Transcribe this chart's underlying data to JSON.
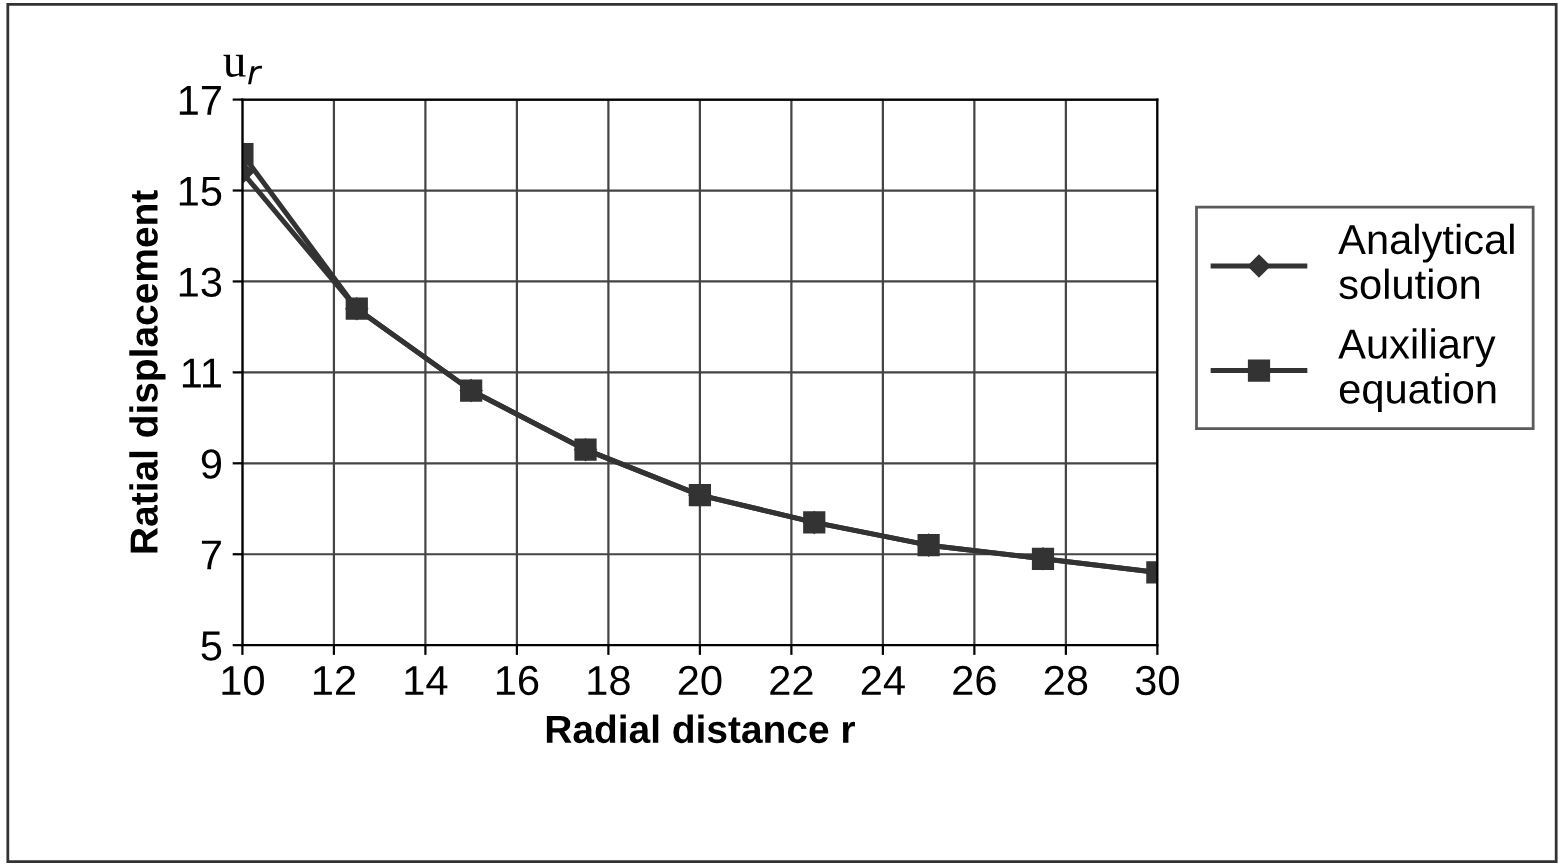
{
  "chart_data": {
    "type": "line",
    "x": [
      10,
      12.5,
      15,
      17.5,
      20,
      22.5,
      25,
      27.5,
      30
    ],
    "series": [
      {
        "name": "Analytical solution",
        "color": "#333333",
        "marker": "diamond",
        "values": [
          15.4,
          12.4,
          10.6,
          9.3,
          8.3,
          7.7,
          7.2,
          6.9,
          6.6
        ]
      },
      {
        "name": "Auxiliary equation",
        "color": "#333333",
        "marker": "square",
        "values": [
          15.8,
          12.4,
          10.6,
          9.3,
          8.3,
          7.7,
          7.2,
          6.9,
          6.6
        ]
      }
    ],
    "xlabel": "Radial distance r",
    "ylabel": "Ratial displacement",
    "annotations": [
      "u$_{r}$"
    ],
    "xlim": [
      10,
      30
    ],
    "xticks": [
      10,
      12,
      14,
      16,
      18,
      20,
      22,
      24,
      26,
      28,
      30
    ],
    "ylim": [
      5,
      17
    ],
    "yticks": [
      5,
      7,
      9,
      11,
      13,
      15,
      17
    ],
    "grid": true,
    "legend": "right",
    "line_style": "solid"
  }
}
